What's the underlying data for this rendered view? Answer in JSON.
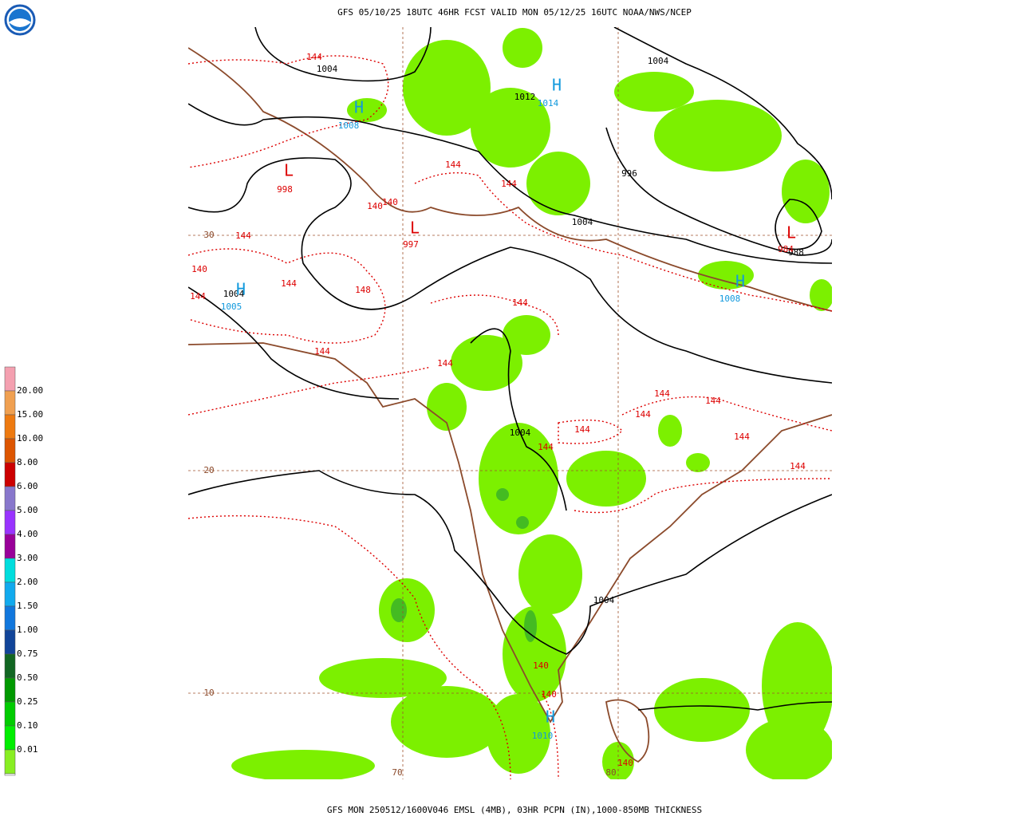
{
  "header": {
    "title": "GFS 05/10/25 18UTC 46HR FCST VALID MON 05/12/25 16UTC NOAA/NWS/NCEP"
  },
  "footer": {
    "caption": "GFS MON 250512/1600V046 EMSL (4MB), 03HR PCPN (IN),1000-850MB THICKNESS"
  },
  "legend": {
    "colors": [
      "#f4a0b0",
      "#f0a050",
      "#ee7a10",
      "#dd5500",
      "#cc0000",
      "#8877cc",
      "#9933ff",
      "#990099",
      "#00dddd",
      "#11aaee",
      "#1177dd",
      "#114499",
      "#116622",
      "#009900",
      "#00cc00",
      "#00ee00",
      "#88ee22"
    ],
    "labels": [
      "20.00",
      "15.00",
      "10.00",
      "8.00",
      "6.00",
      "5.00",
      "4.00",
      "3.00",
      "2.00",
      "1.50",
      "1.00",
      "0.75",
      "0.50",
      "0.25",
      "0.10",
      "0.01"
    ]
  },
  "map": {
    "grid_labels": [
      "30",
      "20",
      "10",
      "70",
      "80"
    ],
    "isobar_labels": [
      "1004",
      "1012",
      "996",
      "1004",
      "988",
      "1004",
      "1004",
      "1004",
      "1004"
    ],
    "thickness_labels": [
      "144",
      "144",
      "144",
      "140",
      "140",
      "144",
      "144",
      "140",
      "148",
      "144",
      "144",
      "144",
      "144",
      "144",
      "144",
      "144",
      "144",
      "144",
      "144",
      "144",
      "140",
      "140",
      "140"
    ],
    "lows": [
      {
        "symbol": "L",
        "value": "998"
      },
      {
        "symbol": "L",
        "value": "997"
      },
      {
        "symbol": "L",
        "value": "984"
      }
    ],
    "highs": [
      {
        "symbol": "H",
        "value": "1014"
      },
      {
        "symbol": "H",
        "value": "1008"
      },
      {
        "symbol": "H",
        "value": "1008"
      },
      {
        "symbol": "H",
        "value": "1005"
      },
      {
        "symbol": "H",
        "value": "1010"
      }
    ]
  }
}
